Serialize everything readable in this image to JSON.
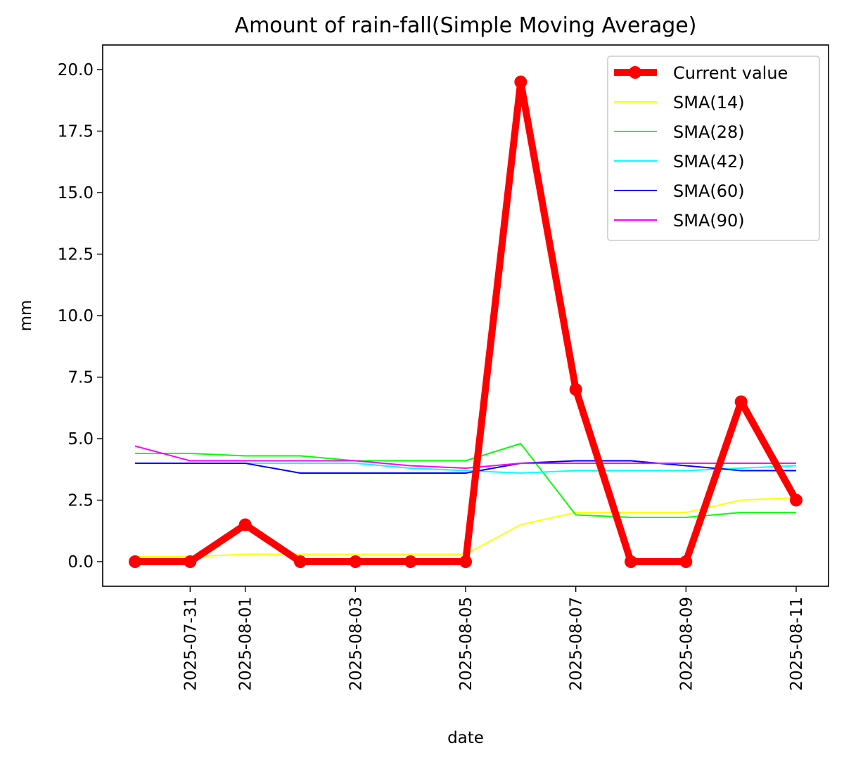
{
  "chart_data": {
    "type": "line",
    "title": "Amount of rain-fall(Simple Moving Average)",
    "xlabel": "date",
    "ylabel": "mm",
    "x": [
      "2025-07-30",
      "2025-07-31",
      "2025-08-01",
      "2025-08-02",
      "2025-08-03",
      "2025-08-04",
      "2025-08-05",
      "2025-08-06",
      "2025-08-07",
      "2025-08-08",
      "2025-08-09",
      "2025-08-10",
      "2025-08-11"
    ],
    "xtick_labels": [
      "2025-07-31",
      "2025-08-01",
      "2025-08-03",
      "2025-08-05",
      "2025-08-07",
      "2025-08-09",
      "2025-08-11"
    ],
    "yticks": [
      "0.0",
      "2.5",
      "5.0",
      "7.5",
      "10.0",
      "12.5",
      "15.0",
      "17.5",
      "20.0"
    ],
    "ylim": [
      -1.0,
      21.0
    ],
    "grid": false,
    "legend_position": "upper right",
    "series": [
      {
        "name": "Current value",
        "color": "#ff0000",
        "style": "thick-with-markers",
        "values": [
          0,
          0,
          1.5,
          0,
          0,
          0,
          0,
          19.5,
          7.0,
          0,
          0,
          6.5,
          2.5
        ]
      },
      {
        "name": "SMA(14)",
        "color": "#ffff00",
        "style": "thin",
        "values": [
          0.2,
          0.2,
          0.3,
          0.3,
          0.3,
          0.3,
          0.3,
          1.5,
          2.0,
          2.0,
          2.0,
          2.5,
          2.6
        ]
      },
      {
        "name": "SMA(28)",
        "color": "#00ff00",
        "style": "thin",
        "values": [
          4.4,
          4.4,
          4.3,
          4.3,
          4.1,
          4.1,
          4.1,
          4.8,
          1.9,
          1.8,
          1.8,
          2.0,
          2.0
        ]
      },
      {
        "name": "SMA(42)",
        "color": "#00ffff",
        "style": "thin",
        "values": [
          4.0,
          4.0,
          4.0,
          4.0,
          4.0,
          3.8,
          3.7,
          3.6,
          3.7,
          3.7,
          3.7,
          3.8,
          3.9
        ]
      },
      {
        "name": "SMA(60)",
        "color": "#0000ff",
        "style": "thin",
        "values": [
          4.0,
          4.0,
          4.0,
          3.6,
          3.6,
          3.6,
          3.6,
          4.0,
          4.1,
          4.1,
          3.9,
          3.7,
          3.7
        ]
      },
      {
        "name": "SMA(90)",
        "color": "#ff00ff",
        "style": "thin",
        "values": [
          4.7,
          4.1,
          4.1,
          4.1,
          4.1,
          3.9,
          3.8,
          4.0,
          4.0,
          4.0,
          4.0,
          4.0,
          4.0
        ]
      }
    ]
  }
}
